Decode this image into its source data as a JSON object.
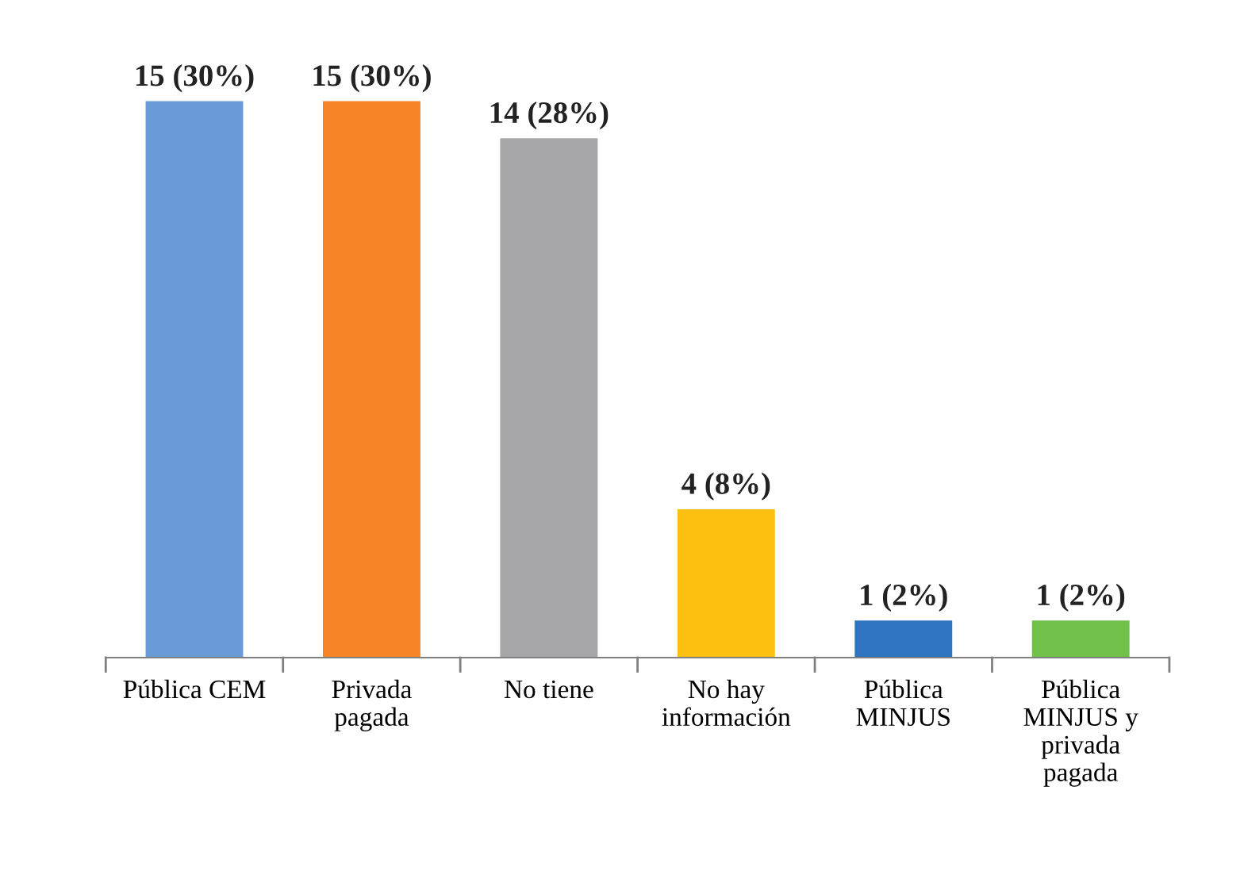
{
  "chart_data": {
    "type": "bar",
    "categories": [
      "Pública CEM",
      "Privada\npagada",
      "No tiene",
      "No hay\ninformación",
      "Pública\nMINJUS",
      "Pública\nMINJUS y\nprivada\npagada"
    ],
    "values": [
      15,
      15,
      14,
      4,
      1,
      1
    ],
    "value_labels": [
      "15 (30%)",
      "15 (30%)",
      "14 (28%)",
      "4 (8%)",
      "1 (2%)",
      "1 (2%)"
    ],
    "colors": [
      "#6a9bd6",
      "#f58426",
      "#a6a6a8",
      "#fdc010",
      "#2e74c0",
      "#70c04a"
    ],
    "grid": false,
    "legend": false
  }
}
